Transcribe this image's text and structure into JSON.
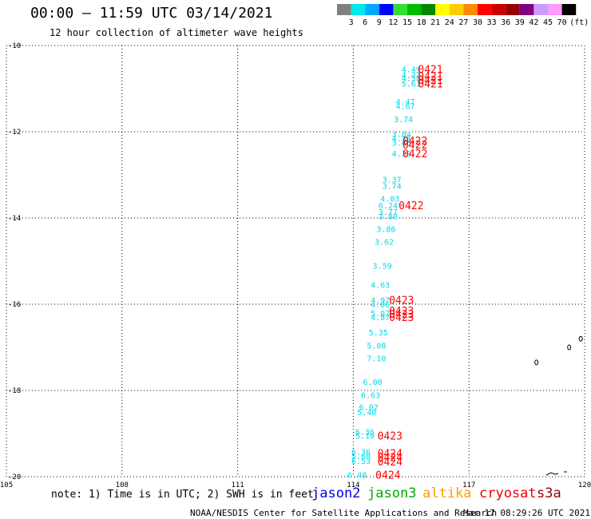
{
  "header": {
    "title": "00:00 – 11:59 UTC 03/14/2021",
    "subtitle": "12 hour collection of altimeter wave heights"
  },
  "colorbar": {
    "unit": "(ft)",
    "levels": [
      {
        "label": "3",
        "color": "#808080"
      },
      {
        "label": "6",
        "color": "#00e8e8"
      },
      {
        "label": "9",
        "color": "#00a8ff"
      },
      {
        "label": "12",
        "color": "#0000ff"
      },
      {
        "label": "15",
        "color": "#33dd33"
      },
      {
        "label": "18",
        "color": "#00bb00"
      },
      {
        "label": "21",
        "color": "#008800"
      },
      {
        "label": "24",
        "color": "#ffff00"
      },
      {
        "label": "27",
        "color": "#ffcc00"
      },
      {
        "label": "30",
        "color": "#ff8800"
      },
      {
        "label": "33",
        "color": "#ff0000"
      },
      {
        "label": "36",
        "color": "#cc0000"
      },
      {
        "label": "39",
        "color": "#990000"
      },
      {
        "label": "42",
        "color": "#800080"
      },
      {
        "label": "45",
        "color": "#cc99ff"
      },
      {
        "label": "70",
        "color": "#ff99ff"
      },
      {
        "label": "",
        "color": "#000000"
      }
    ]
  },
  "map": {
    "lon_range": [
      105,
      120
    ],
    "lat_range": [
      -20,
      -10
    ],
    "lon_ticks": [
      "105",
      "108",
      "111",
      "114",
      "117",
      "120"
    ],
    "lat_ticks": [
      "-10",
      "-12",
      "-14",
      "-16",
      "-18",
      "-20"
    ],
    "grid_lon": [
      108,
      111,
      114,
      117
    ],
    "grid_lat": [
      -12,
      -14,
      -16,
      -18
    ],
    "islands": [
      {
        "lon": 119.6,
        "lat": -17.0
      },
      {
        "lon": 119.9,
        "lat": -16.8
      },
      {
        "lon": 118.75,
        "lat": -17.35
      }
    ]
  },
  "observations": {
    "color_wave": "#00d8e8",
    "color_time": "#ff0000",
    "wave_heights": [
      {
        "lon": 115.5,
        "lat": -10.55,
        "value": "4.49"
      },
      {
        "lon": 115.5,
        "lat": -10.68,
        "value": "4.22"
      },
      {
        "lon": 115.5,
        "lat": -10.75,
        "value": "4.58"
      },
      {
        "lon": 115.5,
        "lat": -10.88,
        "value": "5.61"
      },
      {
        "lon": 115.35,
        "lat": -11.3,
        "value": "4.47"
      },
      {
        "lon": 115.35,
        "lat": -11.4,
        "value": "4.67"
      },
      {
        "lon": 115.3,
        "lat": -11.7,
        "value": "3.74"
      },
      {
        "lon": 115.25,
        "lat": -12.05,
        "value": "3.84"
      },
      {
        "lon": 115.25,
        "lat": -12.15,
        "value": "4.38"
      },
      {
        "lon": 115.25,
        "lat": -12.25,
        "value": "3.45"
      },
      {
        "lon": 115.25,
        "lat": -12.5,
        "value": "4.30"
      },
      {
        "lon": 115.0,
        "lat": -13.1,
        "value": "3.37"
      },
      {
        "lon": 115.0,
        "lat": -13.25,
        "value": "3.74"
      },
      {
        "lon": 114.95,
        "lat": -13.55,
        "value": "4.03"
      },
      {
        "lon": 114.9,
        "lat": -13.7,
        "value": "6.24"
      },
      {
        "lon": 114.9,
        "lat": -13.85,
        "value": "3.77"
      },
      {
        "lon": 114.9,
        "lat": -13.95,
        "value": "3.80"
      },
      {
        "lon": 114.85,
        "lat": -14.25,
        "value": "3.86"
      },
      {
        "lon": 114.8,
        "lat": -14.55,
        "value": "3.62"
      },
      {
        "lon": 114.75,
        "lat": -15.1,
        "value": "3.59"
      },
      {
        "lon": 114.7,
        "lat": -15.55,
        "value": "4.63"
      },
      {
        "lon": 114.7,
        "lat": -15.9,
        "value": "4.97"
      },
      {
        "lon": 114.7,
        "lat": -16.0,
        "value": "4.06"
      },
      {
        "lon": 114.7,
        "lat": -16.2,
        "value": "5.07"
      },
      {
        "lon": 114.7,
        "lat": -16.3,
        "value": "4.87"
      },
      {
        "lon": 114.65,
        "lat": -16.65,
        "value": "5.35"
      },
      {
        "lon": 114.6,
        "lat": -16.95,
        "value": "5.08"
      },
      {
        "lon": 114.6,
        "lat": -17.25,
        "value": "7.10"
      },
      {
        "lon": 114.5,
        "lat": -17.8,
        "value": "6.00"
      },
      {
        "lon": 114.45,
        "lat": -18.1,
        "value": "6.63"
      },
      {
        "lon": 114.4,
        "lat": -18.38,
        "value": "6.02"
      },
      {
        "lon": 114.35,
        "lat": -18.5,
        "value": "5.40"
      },
      {
        "lon": 114.3,
        "lat": -18.95,
        "value": "6.36"
      },
      {
        "lon": 114.3,
        "lat": -19.05,
        "value": "5.19"
      },
      {
        "lon": 114.2,
        "lat": -19.42,
        "value": "6.36"
      },
      {
        "lon": 114.2,
        "lat": -19.52,
        "value": "5.60"
      },
      {
        "lon": 114.2,
        "lat": -19.63,
        "value": "6.53"
      },
      {
        "lon": 114.1,
        "lat": -19.95,
        "value": "6.48"
      }
    ],
    "time_labels": [
      {
        "lon": 116.0,
        "lat": -10.55,
        "value": "0421"
      },
      {
        "lon": 116.0,
        "lat": -10.7,
        "value": "0421"
      },
      {
        "lon": 116.0,
        "lat": -10.8,
        "value": "0421"
      },
      {
        "lon": 116.0,
        "lat": -10.88,
        "value": "0421"
      },
      {
        "lon": 115.6,
        "lat": -12.2,
        "value": "0422"
      },
      {
        "lon": 115.6,
        "lat": -12.3,
        "value": "0422"
      },
      {
        "lon": 115.6,
        "lat": -12.5,
        "value": "0422"
      },
      {
        "lon": 115.5,
        "lat": -13.7,
        "value": "0422"
      },
      {
        "lon": 115.25,
        "lat": -15.9,
        "value": "0423"
      },
      {
        "lon": 115.25,
        "lat": -16.15,
        "value": "0423"
      },
      {
        "lon": 115.25,
        "lat": -16.22,
        "value": "0423"
      },
      {
        "lon": 115.25,
        "lat": -16.3,
        "value": "0423"
      },
      {
        "lon": 114.95,
        "lat": -19.05,
        "value": "0423"
      },
      {
        "lon": 114.95,
        "lat": -19.45,
        "value": "0424"
      },
      {
        "lon": 114.95,
        "lat": -19.55,
        "value": "0424"
      },
      {
        "lon": 114.95,
        "lat": -19.65,
        "value": "0424"
      },
      {
        "lon": 114.9,
        "lat": -19.95,
        "value": "0424"
      }
    ]
  },
  "footer": {
    "note": "note: 1) Time is in UTC; 2) SWH is in feet",
    "missions": [
      {
        "name": "jason2",
        "color": "#0000ee"
      },
      {
        "name": "jason3",
        "color": "#00aa00"
      },
      {
        "name": "altika",
        "color": "#ff9900"
      },
      {
        "name": "cryosat",
        "color": "#ee0000"
      },
      {
        "name": "s3a",
        "color": "#990000"
      }
    ],
    "credit": "NOAA/NESDIS Center for Satellite Applications and Research",
    "timestamp": "Mar 17 08:29:26 UTC 2021"
  }
}
